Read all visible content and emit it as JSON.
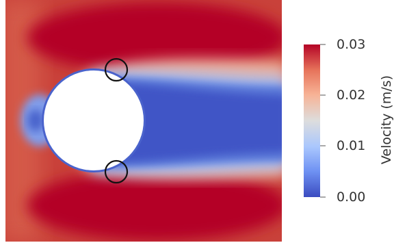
{
  "colorbar": {
    "title": "Velocity (m/s)",
    "ticks": [
      "0.03",
      "0.02",
      "0.01",
      "0.00"
    ],
    "tick_values": [
      0.03,
      0.02,
      0.01,
      0.0
    ],
    "range": [
      0.0,
      0.03
    ],
    "colormap": [
      "#3b4cc0",
      "#6f92f3",
      "#aac7fd",
      "#dddddd",
      "#f7b396",
      "#e7745b",
      "#b40426"
    ]
  },
  "colors": {
    "high_velocity": "#b40426",
    "low_velocity": "#3b4cc0",
    "obstacle": "#ffffff",
    "marker_outline": "#111111"
  }
}
